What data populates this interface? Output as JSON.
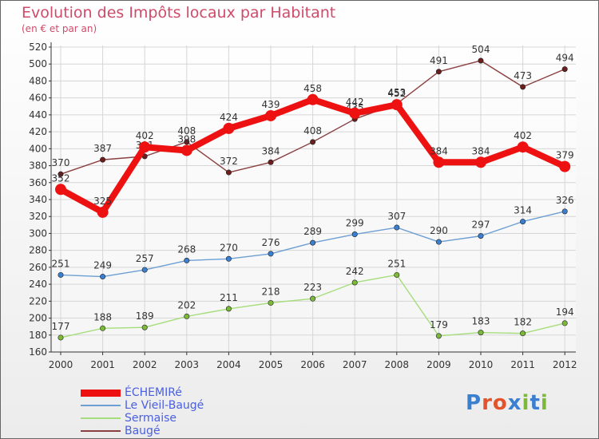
{
  "title": "Evolution des Impôts locaux par Habitant",
  "subtitle": "(en € et par an)",
  "logo": {
    "text": "Proxiti",
    "colors": [
      "#3a7fd0",
      "#e2552c",
      "#e2552c",
      "#3a7fd0",
      "#7cb83a",
      "#3a7fd0",
      "#7cb83a"
    ]
  },
  "chart_data": {
    "type": "line",
    "title": "Evolution des Impôts locaux par Habitant",
    "subtitle": "(en € et par an)",
    "x": [
      2000,
      2001,
      2002,
      2003,
      2004,
      2005,
      2006,
      2007,
      2008,
      2009,
      2010,
      2011,
      2012
    ],
    "x_tick_labels": [
      "2000",
      "2001",
      "2002",
      "2003",
      "2004",
      "2005",
      "2006",
      "2007",
      "2008",
      "2009",
      "2010",
      "2011",
      "2012"
    ],
    "ylim": [
      160,
      520
    ],
    "y_ticks": [
      160,
      180,
      200,
      220,
      240,
      260,
      280,
      300,
      320,
      340,
      360,
      380,
      400,
      420,
      440,
      460,
      480,
      500,
      520
    ],
    "y_tick_labels": [
      "160",
      "180",
      "200",
      "220",
      "240",
      "260",
      "280",
      "300",
      "320",
      "340",
      "360",
      "380",
      "400",
      "420",
      "440",
      "460",
      "480",
      "500",
      "520"
    ],
    "grid": true,
    "legend_position": "bottom-left",
    "series": [
      {
        "name": "ÉCHEMIRé",
        "color": "#ee1111",
        "values": [
          352,
          325,
          402,
          398,
          424,
          439,
          458,
          442,
          452,
          384,
          384,
          402,
          379
        ],
        "labels": [
          "352",
          "325",
          "402",
          "398",
          "424",
          "439",
          "458",
          "442",
          "452",
          "384",
          "384",
          "402",
          "379"
        ]
      },
      {
        "name": "Le Vieil-Baugé",
        "color": "#6d9fd4",
        "marker": "#3a7fd0",
        "values": [
          251,
          249,
          257,
          268,
          270,
          276,
          289,
          299,
          307,
          290,
          297,
          314,
          326
        ],
        "labels": [
          "251",
          "249",
          "257",
          "268",
          "270",
          "276",
          "289",
          "299",
          "307",
          "290",
          "297",
          "314",
          "326"
        ]
      },
      {
        "name": "Sermaise",
        "color": "#a6dd7c",
        "marker": "#7cb83a",
        "values": [
          177,
          188,
          189,
          202,
          211,
          218,
          223,
          242,
          251,
          179,
          183,
          182,
          194
        ],
        "labels": [
          "177",
          "188",
          "189",
          "202",
          "211",
          "218",
          "223",
          "242",
          "251",
          "179",
          "183",
          "182",
          "194"
        ]
      },
      {
        "name": "Baugé",
        "color": "#8a4040",
        "marker": "#6a1e1e",
        "values": [
          370,
          387,
          391,
          408,
          372,
          384,
          408,
          435,
          453,
          491,
          504,
          473,
          494
        ],
        "labels": [
          "370",
          "387",
          "391",
          "408",
          "372",
          "384",
          "408",
          "435",
          "453",
          "491",
          "504",
          "473",
          "494"
        ]
      }
    ]
  }
}
